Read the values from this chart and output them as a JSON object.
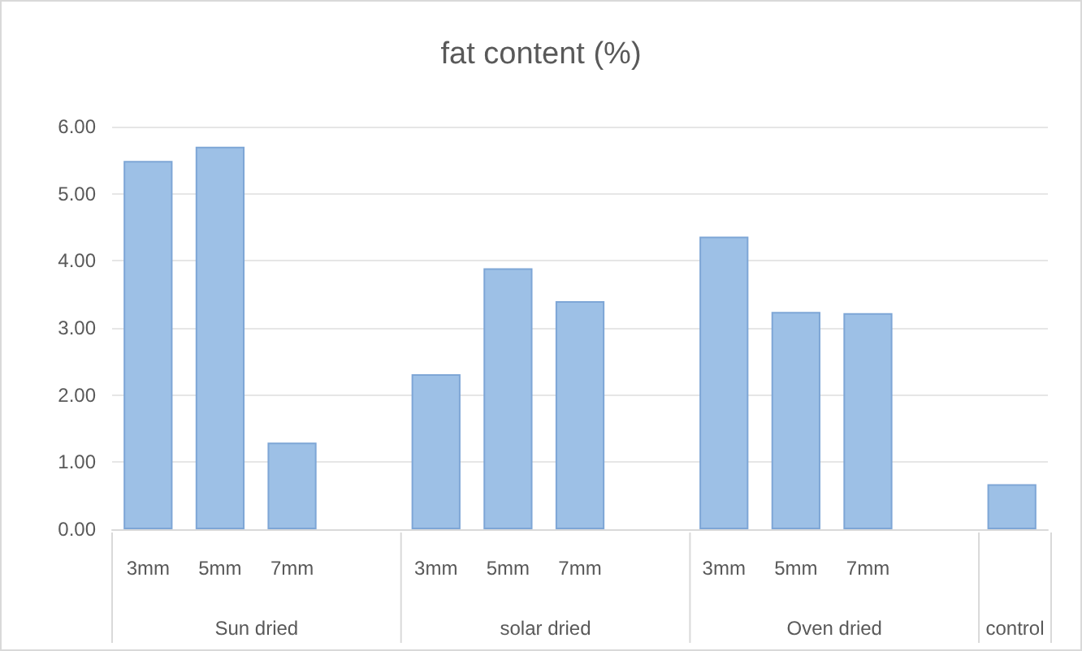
{
  "chart_data": {
    "type": "bar",
    "title": "fat content (%)",
    "categories": [
      "3mm",
      "5mm",
      "7mm",
      null,
      "3mm",
      "5mm",
      "7mm",
      null,
      "3mm",
      "5mm",
      "7mm",
      null,
      null
    ],
    "values": [
      5.49,
      5.7,
      1.29,
      null,
      2.31,
      3.89,
      3.4,
      null,
      4.36,
      3.24,
      3.22,
      null,
      0.67
    ],
    "color": "#9dc0e6",
    "ylim": [
      0,
      6
    ],
    "yticks": [
      {
        "value": 0,
        "label": "0.00"
      },
      {
        "value": 1,
        "label": "1.00"
      },
      {
        "value": 2,
        "label": "2.00"
      },
      {
        "value": 3,
        "label": "3.00"
      },
      {
        "value": 4,
        "label": "4.00"
      },
      {
        "value": 5,
        "label": "5.00"
      },
      {
        "value": 6,
        "label": "6.00"
      }
    ],
    "grid": "y",
    "annotations": [
      "Sun dried",
      "solar dried",
      "Oven dried",
      "control"
    ]
  }
}
